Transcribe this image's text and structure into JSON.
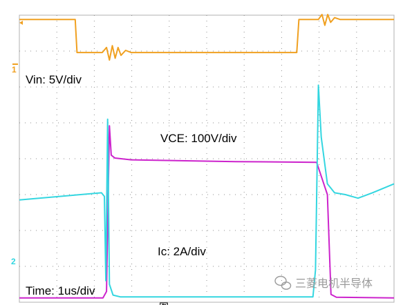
{
  "colors": {
    "vin": "#f0a020",
    "vce": "#cc22cc",
    "ic": "#33d6e0",
    "grid": "#8c8c8c",
    "frame": "#b0b0b0"
  },
  "annotations": {
    "vin_scale": "Vin: 5V/div",
    "vce_scale": "VCE: 100V/div",
    "ic_scale": "Ic: 2A/div",
    "time_scale": "Time: 1us/div"
  },
  "markers": {
    "ch1": "1",
    "ch2": "2"
  },
  "watermark": {
    "icon": "wechat-icon",
    "text": "三菱电机半导体"
  },
  "caption_partial": "图",
  "chart_data": {
    "type": "line",
    "title": "",
    "xlabel": "",
    "ylabel": "",
    "grid": true,
    "x_unit": "us",
    "xlim": [
      0,
      10.4
    ],
    "ylim_div": [
      0,
      8
    ],
    "series": [
      {
        "name": "Vin: 5V/div",
        "color": "#f0a020",
        "points": [
          [
            0,
            7.88
          ],
          [
            1.55,
            7.88
          ],
          [
            1.6,
            6.96
          ],
          [
            2.3,
            6.96
          ],
          [
            2.42,
            7.1
          ],
          [
            2.5,
            6.75
          ],
          [
            2.58,
            7.15
          ],
          [
            2.66,
            6.8
          ],
          [
            2.74,
            7.1
          ],
          [
            2.82,
            6.88
          ],
          [
            2.95,
            7.02
          ],
          [
            3.1,
            6.96
          ],
          [
            7.7,
            6.96
          ],
          [
            7.76,
            7.88
          ],
          [
            8.3,
            7.88
          ],
          [
            8.4,
            8.02
          ],
          [
            8.48,
            7.72
          ],
          [
            8.56,
            8.02
          ],
          [
            8.64,
            7.8
          ],
          [
            8.75,
            7.93
          ],
          [
            8.9,
            7.88
          ],
          [
            10.4,
            7.88
          ]
        ]
      },
      {
        "name": "VCE: 100V/div",
        "color": "#cc22cc",
        "points": [
          [
            0,
            0.12
          ],
          [
            2.32,
            0.12
          ],
          [
            2.42,
            0.3
          ],
          [
            2.5,
            4.92
          ],
          [
            2.55,
            4.1
          ],
          [
            2.65,
            4.02
          ],
          [
            3.1,
            3.97
          ],
          [
            6.0,
            3.92
          ],
          [
            8.25,
            3.9
          ],
          [
            8.4,
            3.45
          ],
          [
            8.55,
            3.0
          ],
          [
            8.65,
            0.22
          ],
          [
            8.8,
            0.14
          ],
          [
            10.4,
            0.12
          ]
        ]
      },
      {
        "name": "Ic: 2A/div",
        "color": "#33d6e0",
        "points": [
          [
            0,
            2.85
          ],
          [
            2.28,
            3.05
          ],
          [
            2.36,
            2.95
          ],
          [
            2.4,
            0.6
          ],
          [
            2.45,
            5.1
          ],
          [
            2.5,
            0.5
          ],
          [
            2.6,
            0.2
          ],
          [
            2.8,
            0.15
          ],
          [
            8.15,
            0.15
          ],
          [
            8.22,
            0.9
          ],
          [
            8.3,
            6.05
          ],
          [
            8.38,
            4.6
          ],
          [
            8.55,
            3.3
          ],
          [
            8.75,
            3.05
          ],
          [
            9.05,
            3.0
          ],
          [
            9.4,
            2.9
          ],
          [
            9.8,
            3.05
          ],
          [
            10.4,
            3.3
          ]
        ]
      }
    ]
  }
}
